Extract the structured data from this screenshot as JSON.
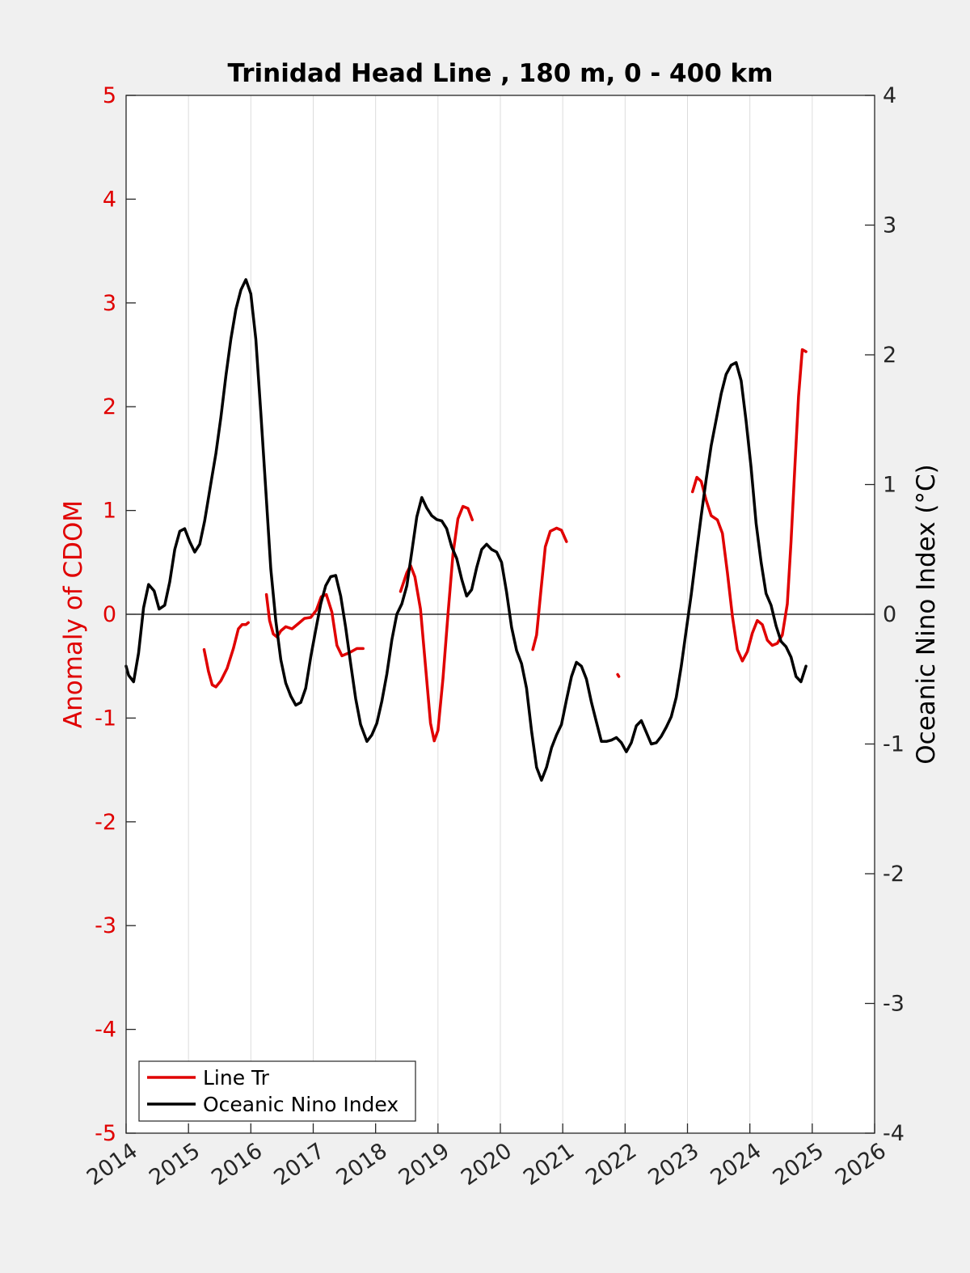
{
  "chart_data": {
    "type": "line",
    "title": "Trinidad Head Line , 180 m, 0 - 400 km",
    "xlabel": "",
    "ylabel_left": "Anomaly of CDOM",
    "ylabel_right": "Oceanic Nino Index (°C)",
    "xlim": [
      2014,
      2026
    ],
    "ylim_left": [
      -5,
      5
    ],
    "ylim_right": [
      -4,
      4
    ],
    "x_ticks": [
      "2014",
      "2015",
      "2016",
      "2017",
      "2018",
      "2019",
      "2020",
      "2021",
      "2022",
      "2023",
      "2024",
      "2025",
      "2026"
    ],
    "y_left_ticks": [
      "-5",
      "-4",
      "-3",
      "-2",
      "-1",
      "0",
      "1",
      "2",
      "3",
      "4",
      "5"
    ],
    "y_right_ticks": [
      "-4",
      "-3",
      "-2",
      "-1",
      "0",
      "1",
      "2",
      "3",
      "4"
    ],
    "grid": "vertical",
    "legend_position": "bottom-left",
    "colors": {
      "left_axis": "#e00000",
      "line_tr": "#e00000",
      "oni": "#000000"
    },
    "series": [
      {
        "name": "Line Tr",
        "axis": "left",
        "color": "#e00000",
        "segments": [
          [
            [
              2015.25,
              -0.34
            ],
            [
              2015.32,
              -0.55
            ],
            [
              2015.38,
              -0.68
            ],
            [
              2015.44,
              -0.7
            ],
            [
              2015.52,
              -0.64
            ],
            [
              2015.62,
              -0.52
            ],
            [
              2015.72,
              -0.33
            ],
            [
              2015.8,
              -0.14
            ],
            [
              2015.86,
              -0.1
            ],
            [
              2015.92,
              -0.1
            ],
            [
              2015.96,
              -0.08
            ]
          ],
          [
            [
              2016.25,
              0.19
            ],
            [
              2016.3,
              -0.06
            ],
            [
              2016.36,
              -0.19
            ],
            [
              2016.42,
              -0.22
            ],
            [
              2016.48,
              -0.16
            ],
            [
              2016.56,
              -0.12
            ],
            [
              2016.66,
              -0.14
            ],
            [
              2016.76,
              -0.09
            ],
            [
              2016.86,
              -0.04
            ],
            [
              2016.96,
              -0.03
            ],
            [
              2017.05,
              0.04
            ],
            [
              2017.13,
              0.17
            ],
            [
              2017.21,
              0.19
            ],
            [
              2017.3,
              0.02
            ],
            [
              2017.38,
              -0.3
            ],
            [
              2017.46,
              -0.4
            ],
            [
              2017.58,
              -0.37
            ],
            [
              2017.7,
              -0.33
            ],
            [
              2017.8,
              -0.33
            ]
          ],
          [
            [
              2018.4,
              0.22
            ],
            [
              2018.5,
              0.4
            ],
            [
              2018.56,
              0.47
            ],
            [
              2018.63,
              0.36
            ],
            [
              2018.72,
              0.05
            ],
            [
              2018.8,
              -0.5
            ],
            [
              2018.88,
              -1.05
            ],
            [
              2018.94,
              -1.22
            ],
            [
              2019.0,
              -1.12
            ],
            [
              2019.08,
              -0.62
            ],
            [
              2019.16,
              0.0
            ],
            [
              2019.24,
              0.58
            ],
            [
              2019.32,
              0.92
            ],
            [
              2019.4,
              1.04
            ],
            [
              2019.48,
              1.02
            ],
            [
              2019.55,
              0.91
            ]
          ],
          [
            [
              2020.52,
              -0.34
            ],
            [
              2020.58,
              -0.2
            ],
            [
              2020.65,
              0.23
            ],
            [
              2020.72,
              0.65
            ],
            [
              2020.8,
              0.8
            ],
            [
              2020.9,
              0.83
            ],
            [
              2020.98,
              0.81
            ],
            [
              2021.06,
              0.7
            ]
          ],
          [
            [
              2021.88,
              -0.58
            ],
            [
              2021.9,
              -0.6
            ]
          ],
          [
            [
              2023.08,
              1.18
            ],
            [
              2023.15,
              1.32
            ],
            [
              2023.22,
              1.28
            ],
            [
              2023.3,
              1.1
            ],
            [
              2023.38,
              0.95
            ],
            [
              2023.48,
              0.91
            ],
            [
              2023.56,
              0.78
            ],
            [
              2023.64,
              0.4
            ],
            [
              2023.72,
              -0.02
            ],
            [
              2023.8,
              -0.34
            ],
            [
              2023.88,
              -0.45
            ],
            [
              2023.96,
              -0.36
            ],
            [
              2024.04,
              -0.18
            ],
            [
              2024.12,
              -0.06
            ],
            [
              2024.2,
              -0.1
            ],
            [
              2024.28,
              -0.25
            ],
            [
              2024.36,
              -0.3
            ],
            [
              2024.44,
              -0.28
            ],
            [
              2024.52,
              -0.2
            ],
            [
              2024.6,
              0.1
            ],
            [
              2024.66,
              0.7
            ],
            [
              2024.72,
              1.4
            ],
            [
              2024.78,
              2.1
            ],
            [
              2024.84,
              2.55
            ],
            [
              2024.9,
              2.53
            ]
          ]
        ]
      },
      {
        "name": "Oceanic Nino Index",
        "axis": "right",
        "color": "#000000",
        "points": [
          [
            2014.0,
            -0.4
          ],
          [
            2014.04,
            -0.47
          ],
          [
            2014.12,
            -0.52
          ],
          [
            2014.2,
            -0.3
          ],
          [
            2014.28,
            0.05
          ],
          [
            2014.36,
            0.23
          ],
          [
            2014.45,
            0.18
          ],
          [
            2014.53,
            0.04
          ],
          [
            2014.62,
            0.07
          ],
          [
            2014.7,
            0.25
          ],
          [
            2014.78,
            0.5
          ],
          [
            2014.86,
            0.64
          ],
          [
            2014.94,
            0.66
          ],
          [
            2015.02,
            0.56
          ],
          [
            2015.1,
            0.48
          ],
          [
            2015.18,
            0.54
          ],
          [
            2015.26,
            0.72
          ],
          [
            2015.36,
            1.01
          ],
          [
            2015.44,
            1.24
          ],
          [
            2015.52,
            1.52
          ],
          [
            2015.6,
            1.84
          ],
          [
            2015.68,
            2.12
          ],
          [
            2015.76,
            2.35
          ],
          [
            2015.84,
            2.5
          ],
          [
            2015.92,
            2.58
          ],
          [
            2016.0,
            2.47
          ],
          [
            2016.08,
            2.12
          ],
          [
            2016.16,
            1.55
          ],
          [
            2016.24,
            0.95
          ],
          [
            2016.32,
            0.35
          ],
          [
            2016.4,
            -0.05
          ],
          [
            2016.48,
            -0.35
          ],
          [
            2016.56,
            -0.53
          ],
          [
            2016.64,
            -0.63
          ],
          [
            2016.72,
            -0.7
          ],
          [
            2016.8,
            -0.68
          ],
          [
            2016.88,
            -0.57
          ],
          [
            2016.96,
            -0.33
          ],
          [
            2017.04,
            -0.12
          ],
          [
            2017.12,
            0.08
          ],
          [
            2017.2,
            0.22
          ],
          [
            2017.28,
            0.29
          ],
          [
            2017.36,
            0.3
          ],
          [
            2017.44,
            0.14
          ],
          [
            2017.52,
            -0.1
          ],
          [
            2017.6,
            -0.38
          ],
          [
            2017.68,
            -0.65
          ],
          [
            2017.76,
            -0.85
          ],
          [
            2017.86,
            -0.98
          ],
          [
            2017.94,
            -0.93
          ],
          [
            2018.02,
            -0.84
          ],
          [
            2018.1,
            -0.67
          ],
          [
            2018.18,
            -0.46
          ],
          [
            2018.26,
            -0.2
          ],
          [
            2018.34,
            0.0
          ],
          [
            2018.42,
            0.08
          ],
          [
            2018.5,
            0.22
          ],
          [
            2018.58,
            0.48
          ],
          [
            2018.66,
            0.75
          ],
          [
            2018.74,
            0.9
          ],
          [
            2018.82,
            0.82
          ],
          [
            2018.9,
            0.76
          ],
          [
            2018.98,
            0.73
          ],
          [
            2019.06,
            0.72
          ],
          [
            2019.14,
            0.66
          ],
          [
            2019.22,
            0.52
          ],
          [
            2019.3,
            0.43
          ],
          [
            2019.38,
            0.27
          ],
          [
            2019.46,
            0.14
          ],
          [
            2019.54,
            0.19
          ],
          [
            2019.62,
            0.36
          ],
          [
            2019.7,
            0.5
          ],
          [
            2019.78,
            0.54
          ],
          [
            2019.86,
            0.5
          ],
          [
            2019.94,
            0.48
          ],
          [
            2020.02,
            0.4
          ],
          [
            2020.1,
            0.17
          ],
          [
            2020.18,
            -0.1
          ],
          [
            2020.26,
            -0.28
          ],
          [
            2020.34,
            -0.38
          ],
          [
            2020.42,
            -0.57
          ],
          [
            2020.5,
            -0.9
          ],
          [
            2020.58,
            -1.18
          ],
          [
            2020.66,
            -1.28
          ],
          [
            2020.74,
            -1.18
          ],
          [
            2020.82,
            -1.03
          ],
          [
            2020.9,
            -0.93
          ],
          [
            2020.98,
            -0.85
          ],
          [
            2021.06,
            -0.66
          ],
          [
            2021.14,
            -0.48
          ],
          [
            2021.22,
            -0.37
          ],
          [
            2021.3,
            -0.4
          ],
          [
            2021.38,
            -0.5
          ],
          [
            2021.46,
            -0.68
          ],
          [
            2021.54,
            -0.83
          ],
          [
            2021.62,
            -0.98
          ],
          [
            2021.7,
            -0.98
          ],
          [
            2021.78,
            -0.97
          ],
          [
            2021.86,
            -0.95
          ],
          [
            2021.94,
            -0.99
          ],
          [
            2022.02,
            -1.06
          ],
          [
            2022.1,
            -0.99
          ],
          [
            2022.18,
            -0.86
          ],
          [
            2022.26,
            -0.82
          ],
          [
            2022.34,
            -0.91
          ],
          [
            2022.42,
            -1.0
          ],
          [
            2022.5,
            -0.99
          ],
          [
            2022.58,
            -0.94
          ],
          [
            2022.66,
            -0.87
          ],
          [
            2022.74,
            -0.79
          ],
          [
            2022.82,
            -0.64
          ],
          [
            2022.9,
            -0.4
          ],
          [
            2022.98,
            -0.12
          ],
          [
            2023.06,
            0.15
          ],
          [
            2023.14,
            0.46
          ],
          [
            2023.22,
            0.76
          ],
          [
            2023.3,
            1.04
          ],
          [
            2023.38,
            1.3
          ],
          [
            2023.46,
            1.5
          ],
          [
            2023.54,
            1.7
          ],
          [
            2023.62,
            1.85
          ],
          [
            2023.7,
            1.92
          ],
          [
            2023.78,
            1.94
          ],
          [
            2023.86,
            1.8
          ],
          [
            2023.94,
            1.49
          ],
          [
            2024.02,
            1.13
          ],
          [
            2024.1,
            0.7
          ],
          [
            2024.18,
            0.4
          ],
          [
            2024.26,
            0.16
          ],
          [
            2024.34,
            0.07
          ],
          [
            2024.42,
            -0.09
          ],
          [
            2024.5,
            -0.21
          ],
          [
            2024.58,
            -0.25
          ],
          [
            2024.66,
            -0.33
          ],
          [
            2024.74,
            -0.48
          ],
          [
            2024.82,
            -0.52
          ],
          [
            2024.9,
            -0.4
          ]
        ]
      }
    ],
    "legend": [
      {
        "label": "Line Tr",
        "color": "#e00000"
      },
      {
        "label": "Oceanic Nino Index",
        "color": "#000000"
      }
    ]
  }
}
